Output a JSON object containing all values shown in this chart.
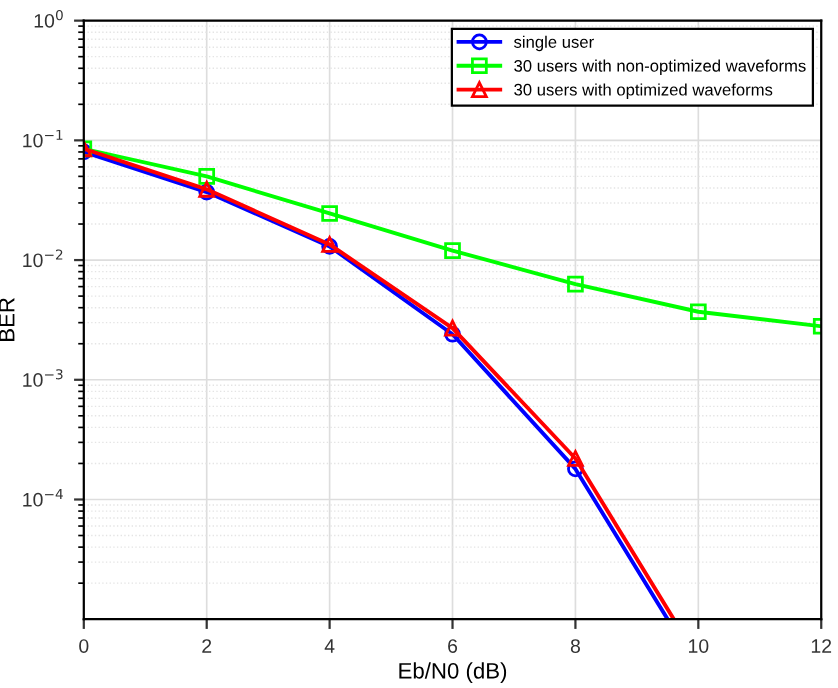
{
  "chart_data": {
    "type": "line",
    "xlabel": "Eb/N0 (dB)",
    "ylabel": "BER",
    "log": "y",
    "grid": true,
    "legend": "top right",
    "line_style": "solid",
    "x": [
      0,
      2,
      4,
      6,
      8,
      10,
      12
    ],
    "xlim": [
      0,
      12
    ],
    "xticks": [
      0,
      2,
      4,
      6,
      8,
      10,
      12
    ],
    "ylim": [
      1e-05,
      1
    ],
    "yticks": [
      {
        "value": 0.0001,
        "label": "10$^{−4}$"
      },
      {
        "value": 0.001,
        "label": "10$^{−3}$"
      },
      {
        "value": 0.01,
        "label": "10$^{−2}$"
      },
      {
        "value": 0.1,
        "label": "10$^{−1}$"
      },
      {
        "value": 1,
        "label": "10$^{0}$"
      }
    ],
    "series": [
      {
        "name": "single user",
        "color": "#0000ff",
        "marker": "circle",
        "x": [
          0,
          2,
          4,
          6,
          8,
          9.5
        ],
        "values": [
          0.08,
          0.037,
          0.013,
          0.0024,
          0.00018,
          1e-05
        ]
      },
      {
        "name": "30 users with non-optimized waveforms",
        "color": "#00ff00",
        "marker": "square",
        "values": [
          0.085,
          0.05,
          0.0245,
          0.012,
          0.0063,
          0.0037,
          0.0028
        ]
      },
      {
        "name": "30 users with optimized waveforms",
        "color": "#ff0000",
        "marker": "triangle",
        "x": [
          0,
          2,
          4,
          6,
          8,
          9.6
        ],
        "values": [
          0.085,
          0.039,
          0.0135,
          0.0027,
          0.00022,
          1e-05
        ]
      }
    ]
  }
}
